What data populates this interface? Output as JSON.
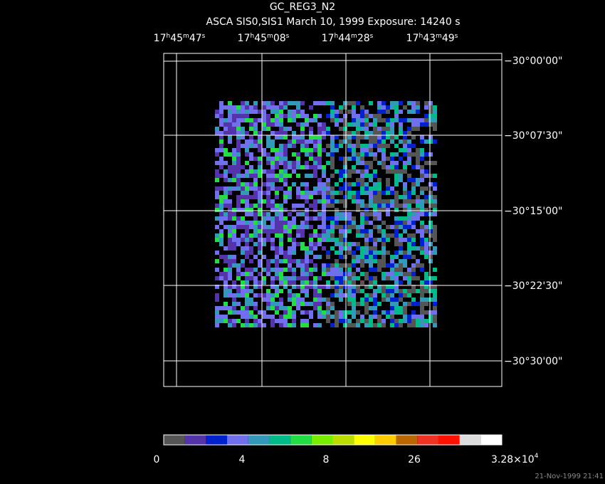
{
  "header": {
    "title": "GC_REG3_N2",
    "subtitle": "ASCA SIS0,SIS1 March 10, 1999 Exposure: 14240 s"
  },
  "ra_labels": [
    [
      "17",
      "h",
      "45",
      "m",
      "47",
      "s"
    ],
    [
      "17",
      "h",
      "45",
      "m",
      "08",
      "s"
    ],
    [
      "17",
      "h",
      "44",
      "m",
      "28",
      "s"
    ],
    [
      "17",
      "h",
      "43",
      "m",
      "49",
      "s"
    ]
  ],
  "dec_labels": [
    "−30°00'00\"",
    "−30°07'30\"",
    "−30°15'00\"",
    "−30°22'30\"",
    "−30°30'00\""
  ],
  "colorbar": {
    "colors": [
      "#555555",
      "#5533aa",
      "#0022cc",
      "#7070ee",
      "#3399bb",
      "#00bb88",
      "#22dd44",
      "#77ee00",
      "#bbdd00",
      "#ffff00",
      "#ffcc00",
      "#bb6600",
      "#ee3322",
      "#ff1100",
      "#dddddd",
      "#ffffff"
    ],
    "labels": [
      "0",
      "4",
      "8",
      "26"
    ],
    "max_label": {
      "mantissa": "3.28×10",
      "exponent": "4"
    }
  },
  "timestamp": "21-Nov-1999 21:41"
}
